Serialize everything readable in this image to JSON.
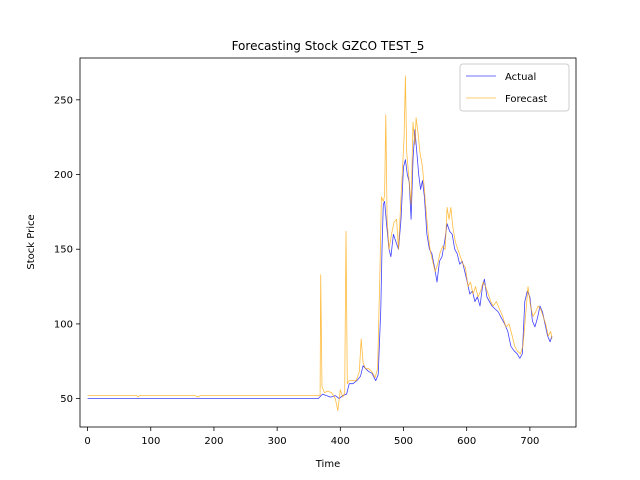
{
  "chart_data": {
    "type": "line",
    "title": "Forecasting Stock GZCO TEST_5",
    "xlabel": "Time",
    "ylabel": "Stock Price",
    "xlim": [
      -12,
      773
    ],
    "ylim": [
      31,
      278
    ],
    "xticks": [
      0,
      100,
      200,
      300,
      400,
      500,
      600,
      700
    ],
    "yticks": [
      50,
      100,
      150,
      200,
      250
    ],
    "grid": false,
    "legend_position": "top-right",
    "series": [
      {
        "name": "Actual",
        "color": "#0000ff",
        "points": [
          [
            0,
            50
          ],
          [
            80,
            50
          ],
          [
            100,
            50
          ],
          [
            200,
            50
          ],
          [
            300,
            50
          ],
          [
            365,
            50
          ],
          [
            372,
            53
          ],
          [
            378,
            52
          ],
          [
            385,
            51
          ],
          [
            392,
            52
          ],
          [
            398,
            50
          ],
          [
            404,
            52
          ],
          [
            410,
            53
          ],
          [
            414,
            60
          ],
          [
            420,
            60
          ],
          [
            426,
            62
          ],
          [
            432,
            65
          ],
          [
            436,
            72
          ],
          [
            440,
            70
          ],
          [
            445,
            68
          ],
          [
            450,
            67
          ],
          [
            456,
            62
          ],
          [
            460,
            66
          ],
          [
            464,
            110
          ],
          [
            466,
            150
          ],
          [
            468,
            180
          ],
          [
            470,
            182
          ],
          [
            473,
            168
          ],
          [
            477,
            150
          ],
          [
            480,
            145
          ],
          [
            484,
            160
          ],
          [
            488,
            155
          ],
          [
            492,
            150
          ],
          [
            496,
            170
          ],
          [
            500,
            205
          ],
          [
            503,
            210
          ],
          [
            506,
            200
          ],
          [
            509,
            195
          ],
          [
            512,
            170
          ],
          [
            515,
            210
          ],
          [
            518,
            230
          ],
          [
            521,
            215
          ],
          [
            524,
            200
          ],
          [
            527,
            190
          ],
          [
            530,
            196
          ],
          [
            533,
            185
          ],
          [
            537,
            160
          ],
          [
            541,
            150
          ],
          [
            545,
            147
          ],
          [
            549,
            138
          ],
          [
            553,
            128
          ],
          [
            557,
            142
          ],
          [
            561,
            145
          ],
          [
            565,
            155
          ],
          [
            569,
            167
          ],
          [
            573,
            162
          ],
          [
            577,
            160
          ],
          [
            581,
            150
          ],
          [
            585,
            147
          ],
          [
            589,
            140
          ],
          [
            593,
            142
          ],
          [
            597,
            135
          ],
          [
            601,
            128
          ],
          [
            605,
            120
          ],
          [
            609,
            122
          ],
          [
            613,
            115
          ],
          [
            617,
            118
          ],
          [
            621,
            112
          ],
          [
            625,
            125
          ],
          [
            628,
            130
          ],
          [
            632,
            118
          ],
          [
            636,
            115
          ],
          [
            640,
            112
          ],
          [
            645,
            110
          ],
          [
            650,
            108
          ],
          [
            655,
            104
          ],
          [
            660,
            100
          ],
          [
            665,
            95
          ],
          [
            670,
            85
          ],
          [
            675,
            82
          ],
          [
            680,
            80
          ],
          [
            684,
            77
          ],
          [
            688,
            80
          ],
          [
            692,
            115
          ],
          [
            696,
            122
          ],
          [
            700,
            118
          ],
          [
            704,
            102
          ],
          [
            708,
            98
          ],
          [
            712,
            104
          ],
          [
            716,
            112
          ],
          [
            720,
            108
          ],
          [
            724,
            100
          ],
          [
            728,
            92
          ],
          [
            732,
            88
          ],
          [
            735,
            92
          ]
        ]
      },
      {
        "name": "Forecast",
        "color": "#ffa500",
        "points": [
          [
            0,
            52
          ],
          [
            78,
            52
          ],
          [
            80,
            51
          ],
          [
            82,
            52
          ],
          [
            100,
            52
          ],
          [
            170,
            52
          ],
          [
            175,
            51
          ],
          [
            178,
            52
          ],
          [
            200,
            52
          ],
          [
            300,
            52
          ],
          [
            365,
            52
          ],
          [
            368,
            52
          ],
          [
            369,
            133
          ],
          [
            371,
            58
          ],
          [
            375,
            54
          ],
          [
            380,
            55
          ],
          [
            386,
            54
          ],
          [
            392,
            50
          ],
          [
            396,
            42
          ],
          [
            400,
            56
          ],
          [
            404,
            51
          ],
          [
            407,
            54
          ],
          [
            409,
            162
          ],
          [
            411,
            60
          ],
          [
            414,
            62
          ],
          [
            420,
            62
          ],
          [
            425,
            62
          ],
          [
            430,
            68
          ],
          [
            433,
            90
          ],
          [
            436,
            74
          ],
          [
            440,
            70
          ],
          [
            445,
            70
          ],
          [
            450,
            68
          ],
          [
            455,
            64
          ],
          [
            459,
            70
          ],
          [
            463,
            140
          ],
          [
            465,
            185
          ],
          [
            468,
            182
          ],
          [
            470,
            186
          ],
          [
            472,
            240
          ],
          [
            474,
            170
          ],
          [
            477,
            150
          ],
          [
            481,
            160
          ],
          [
            485,
            168
          ],
          [
            489,
            170
          ],
          [
            492,
            150
          ],
          [
            495,
            175
          ],
          [
            498,
            200
          ],
          [
            501,
            225
          ],
          [
            503,
            266
          ],
          [
            505,
            215
          ],
          [
            508,
            200
          ],
          [
            512,
            180
          ],
          [
            515,
            235
          ],
          [
            518,
            220
          ],
          [
            520,
            238
          ],
          [
            523,
            228
          ],
          [
            526,
            215
          ],
          [
            530,
            205
          ],
          [
            534,
            185
          ],
          [
            538,
            165
          ],
          [
            542,
            150
          ],
          [
            546,
            142
          ],
          [
            550,
            135
          ],
          [
            554,
            140
          ],
          [
            558,
            148
          ],
          [
            562,
            152
          ],
          [
            566,
            150
          ],
          [
            569,
            178
          ],
          [
            572,
            170
          ],
          [
            575,
            178
          ],
          [
            578,
            165
          ],
          [
            582,
            155
          ],
          [
            586,
            150
          ],
          [
            590,
            145
          ],
          [
            594,
            140
          ],
          [
            598,
            138
          ],
          [
            602,
            125
          ],
          [
            606,
            128
          ],
          [
            610,
            120
          ],
          [
            614,
            125
          ],
          [
            618,
            118
          ],
          [
            622,
            122
          ],
          [
            626,
            128
          ],
          [
            630,
            125
          ],
          [
            634,
            120
          ],
          [
            638,
            115
          ],
          [
            642,
            112
          ],
          [
            647,
            115
          ],
          [
            652,
            110
          ],
          [
            657,
            105
          ],
          [
            662,
            98
          ],
          [
            667,
            100
          ],
          [
            672,
            92
          ],
          [
            676,
            85
          ],
          [
            680,
            82
          ],
          [
            685,
            80
          ],
          [
            689,
            85
          ],
          [
            693,
            105
          ],
          [
            697,
            125
          ],
          [
            701,
            112
          ],
          [
            705,
            105
          ],
          [
            709,
            108
          ],
          [
            713,
            112
          ],
          [
            717,
            110
          ],
          [
            721,
            105
          ],
          [
            725,
            100
          ],
          [
            729,
            92
          ],
          [
            733,
            95
          ],
          [
            735,
            90
          ]
        ]
      }
    ]
  }
}
